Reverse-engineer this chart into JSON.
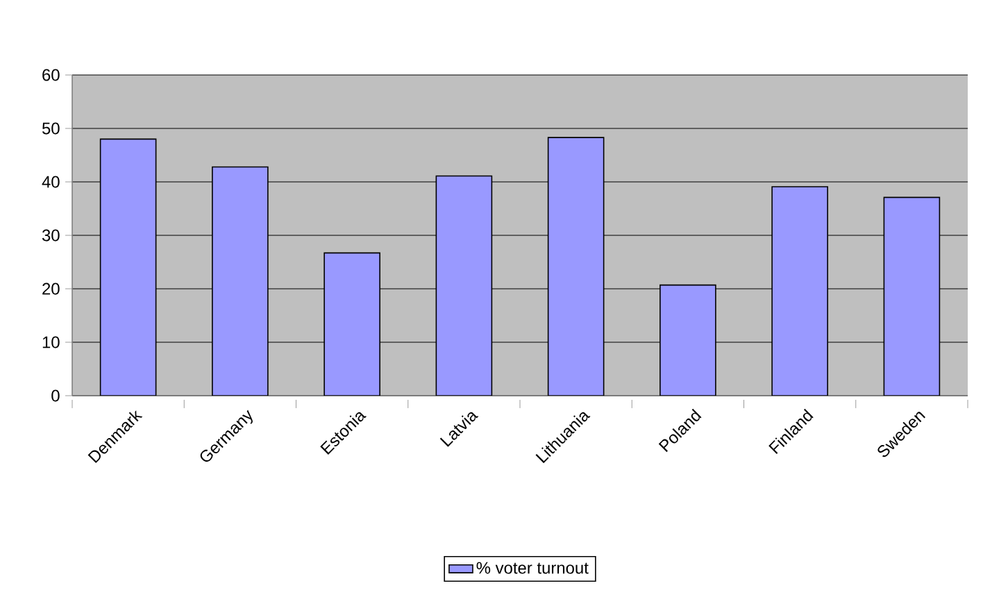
{
  "chart_data": {
    "type": "bar",
    "categories": [
      "Denmark",
      "Germany",
      "Estonia",
      "Latvia",
      "Lithuania",
      "Poland",
      "Finland",
      "Sweden"
    ],
    "series": [
      {
        "name": "% voter turnout",
        "color": "#9999ff",
        "values": [
          48.0,
          42.8,
          26.7,
          41.1,
          48.3,
          20.7,
          39.1,
          37.1
        ]
      }
    ],
    "ylim": [
      0,
      60
    ],
    "yticks": [
      0,
      10,
      20,
      30,
      40,
      50,
      60
    ],
    "grid": "y",
    "legend": "bottom"
  }
}
